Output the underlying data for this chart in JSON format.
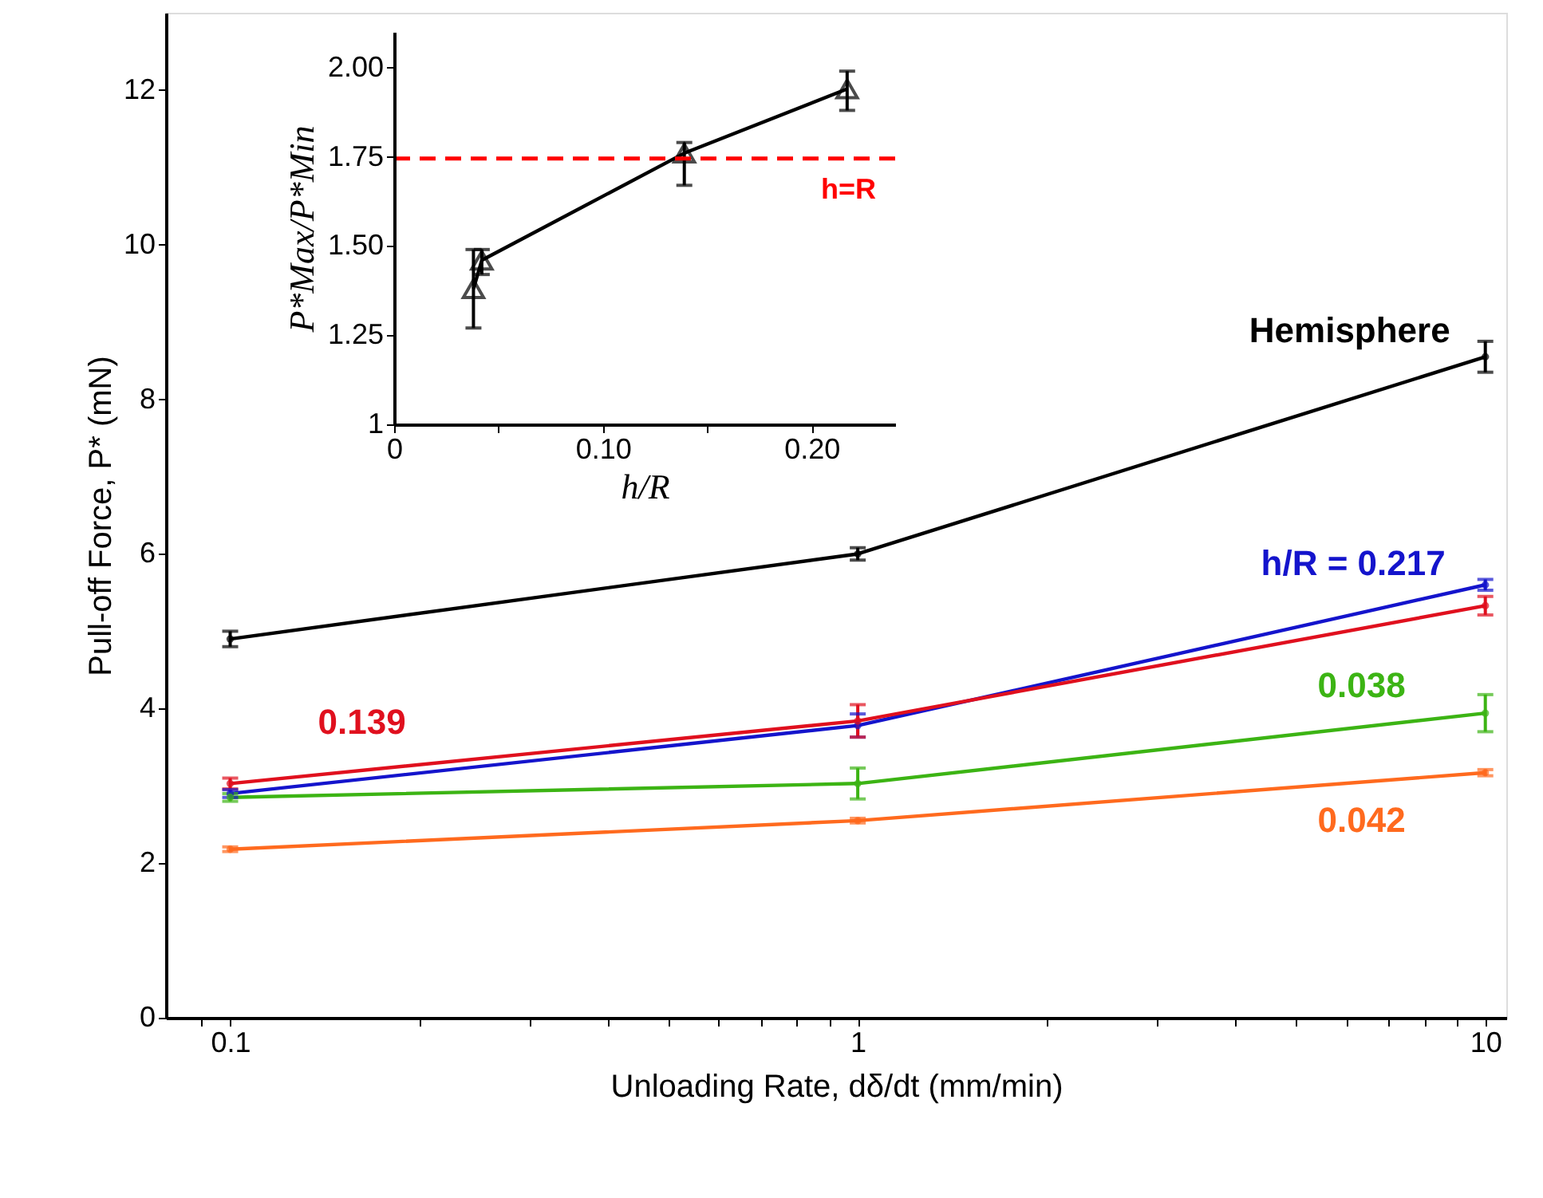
{
  "chart_data": [
    {
      "type": "line",
      "xlabel": "Unloading Rate, dδ/dt (mm/min)",
      "ylabel": "Pull-off Force, P* (mN)",
      "log": "x",
      "marker": "circle",
      "line_style": "solid",
      "grid": false,
      "legend": false,
      "x": [
        0.1,
        1,
        10
      ],
      "xlim": [
        0.079,
        10.8
      ],
      "xticks": [
        {
          "value": 0.09,
          "label": null
        },
        0.1,
        {
          "value": 0.2,
          "label": null
        },
        {
          "value": 0.3,
          "label": null
        },
        {
          "value": 0.4,
          "label": null
        },
        {
          "value": 0.5,
          "label": null
        },
        {
          "value": 0.6,
          "label": null
        },
        {
          "value": 0.7,
          "label": null
        },
        {
          "value": 0.8,
          "label": null
        },
        {
          "value": 0.9,
          "label": null
        },
        1,
        {
          "value": 2,
          "label": null
        },
        {
          "value": 3,
          "label": null
        },
        {
          "value": 4,
          "label": null
        },
        {
          "value": 5,
          "label": null
        },
        {
          "value": 6,
          "label": null
        },
        {
          "value": 7,
          "label": null
        },
        {
          "value": 8,
          "label": null
        },
        {
          "value": 9,
          "label": null
        },
        10
      ],
      "ylim": [
        0,
        13
      ],
      "yticks": [
        0,
        2,
        4,
        6,
        8,
        10,
        12
      ],
      "series": [
        {
          "name": "Hemisphere",
          "color": "#000000",
          "values": [
            4.9,
            6.0,
            8.55
          ],
          "errors": [
            0.1,
            0.08,
            0.2
          ]
        },
        {
          "name": "h/R = 0.217",
          "color": "#1414cc",
          "values": [
            2.9,
            3.78,
            5.6
          ],
          "errors": [
            0.05,
            0.15,
            0.07
          ]
        },
        {
          "name": "0.139",
          "color": "#e0101e",
          "values": [
            3.03,
            3.84,
            5.33
          ],
          "errors": [
            0.07,
            0.21,
            0.12
          ]
        },
        {
          "name": "0.038",
          "color": "#3cb414",
          "values": [
            2.85,
            3.03,
            3.94
          ],
          "errors": [
            0.05,
            0.2,
            0.24
          ]
        },
        {
          "name": "0.042",
          "color": "#ff6a1e",
          "values": [
            2.18,
            2.55,
            3.17
          ],
          "errors": [
            0.03,
            0.03,
            0.04
          ]
        }
      ]
    },
    {
      "type": "line",
      "xlabel": "h/R",
      "ylabel": "P*Max/P*Min",
      "marker": "triangle",
      "line_style": "solid",
      "grid": false,
      "legend": false,
      "xlim": [
        0,
        0.24
      ],
      "xticks": [
        0,
        {
          "value": 0.05,
          "label": null
        },
        {
          "value": 0.1,
          "label": "0.10"
        },
        {
          "value": 0.15,
          "label": null
        },
        {
          "value": 0.2,
          "label": "0.20"
        }
      ],
      "ylim": [
        1,
        2.1
      ],
      "yticks": [
        1,
        {
          "value": 1.25,
          "label": "1.25"
        },
        {
          "value": 1.5,
          "label": "1.50"
        },
        {
          "value": 1.75,
          "label": "1.75"
        },
        {
          "value": 2,
          "label": "2.00"
        }
      ],
      "series": [
        {
          "color": "#000000",
          "x": [
            0.038,
            0.042,
            0.139,
            0.217
          ],
          "values": [
            1.38,
            1.46,
            1.76,
            1.94
          ],
          "errors": [
            [
              1.27,
              1.49
            ],
            [
              1.42,
              1.49
            ],
            [
              1.67,
              1.79
            ],
            [
              1.88,
              1.99
            ]
          ]
        }
      ],
      "ref_lines": [
        {
          "axis": "y",
          "value": 1.745,
          "label": "h=R",
          "color": "#ff0000",
          "line_style": "dashed"
        }
      ]
    }
  ]
}
